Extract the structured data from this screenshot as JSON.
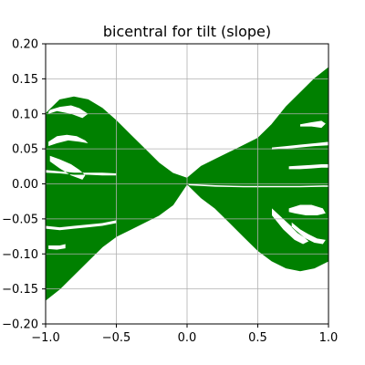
{
  "chart_data": {
    "type": "area",
    "title": "bicentral for tilt (slope)",
    "xlabel": "",
    "ylabel": "",
    "xlim": [
      -1.0,
      1.0
    ],
    "ylim": [
      -0.2,
      0.2
    ],
    "xticks": [
      -1.0,
      -0.5,
      0.0,
      0.5,
      1.0
    ],
    "xtick_labels": [
      "−1.0",
      "−0.5",
      "0.0",
      "0.5",
      "1.0"
    ],
    "yticks": [
      -0.2,
      -0.15,
      -0.1,
      -0.05,
      0.0,
      0.05,
      0.1,
      0.15,
      0.2
    ],
    "ytick_labels": [
      "−0.20",
      "−0.15",
      "−0.10",
      "−0.05",
      "0.00",
      "0.05",
      "0.10",
      "0.15",
      "0.20"
    ],
    "grid": true,
    "fill_color": "#008000",
    "series": [
      {
        "role": "upper-envelope",
        "x": [
          -1.0,
          -0.9,
          -0.8,
          -0.7,
          -0.6,
          -0.5,
          -0.4,
          -0.3,
          -0.2,
          -0.1,
          0.0,
          0.1,
          0.2,
          0.3,
          0.4,
          0.5,
          0.6,
          0.7,
          0.8,
          0.9,
          1.0
        ],
        "y": [
          0.1,
          0.12,
          0.124,
          0.12,
          0.108,
          0.09,
          0.07,
          0.05,
          0.03,
          0.015,
          0.008,
          0.025,
          0.035,
          0.045,
          0.055,
          0.065,
          0.085,
          0.11,
          0.13,
          0.15,
          0.166
        ]
      },
      {
        "role": "lower-envelope",
        "x": [
          -1.0,
          -0.9,
          -0.8,
          -0.7,
          -0.6,
          -0.5,
          -0.4,
          -0.3,
          -0.2,
          -0.1,
          0.0,
          0.1,
          0.2,
          0.3,
          0.4,
          0.5,
          0.6,
          0.7,
          0.8,
          0.9,
          1.0
        ],
        "y": [
          -0.166,
          -0.15,
          -0.13,
          -0.11,
          -0.09,
          -0.075,
          -0.065,
          -0.055,
          -0.045,
          -0.03,
          0.0,
          -0.02,
          -0.035,
          -0.055,
          -0.075,
          -0.095,
          -0.11,
          -0.12,
          -0.124,
          -0.12,
          -0.11
        ]
      }
    ],
    "holes": [
      {
        "x": [
          -0.98,
          -0.92,
          -0.85,
          -0.78,
          -0.72,
          -0.7,
          -0.76,
          -0.84,
          -0.92,
          -0.98
        ],
        "y": [
          0.06,
          0.068,
          0.07,
          0.068,
          0.062,
          0.058,
          0.06,
          0.062,
          0.058,
          0.054
        ]
      },
      {
        "x": [
          -0.97,
          -0.9,
          -0.82,
          -0.76,
          -0.72,
          -0.74,
          -0.82,
          -0.9,
          -0.97
        ],
        "y": [
          0.04,
          0.035,
          0.028,
          0.02,
          0.012,
          0.006,
          0.012,
          0.022,
          0.032
        ]
      },
      {
        "x": [
          -1.0,
          -0.9,
          -0.8,
          -0.7,
          -0.6,
          -0.5,
          -0.5,
          -0.6,
          -0.7,
          -0.8,
          -0.9,
          -1.0
        ],
        "y": [
          0.02,
          0.018,
          0.016,
          0.016,
          0.016,
          0.015,
          0.012,
          0.012,
          0.013,
          0.013,
          0.015,
          0.016
        ]
      },
      {
        "x": [
          -0.98,
          -0.9,
          -0.82,
          -0.76,
          -0.7,
          -0.74,
          -0.82,
          -0.92,
          -0.98
        ],
        "y": [
          0.105,
          0.11,
          0.112,
          0.108,
          0.1,
          0.094,
          0.1,
          0.104,
          0.1
        ]
      },
      {
        "x": [
          -1.0,
          -0.9,
          -0.8,
          -0.7,
          -0.6,
          -0.5,
          -0.5,
          -0.6,
          -0.7,
          -0.8,
          -0.9,
          -1.0
        ],
        "y": [
          -0.06,
          -0.062,
          -0.06,
          -0.058,
          -0.056,
          -0.052,
          -0.056,
          -0.06,
          -0.062,
          -0.064,
          -0.066,
          -0.064
        ]
      },
      {
        "x": [
          -0.98,
          -0.9,
          -0.86,
          -0.86,
          -0.92,
          -0.98
        ],
        "y": [
          -0.088,
          -0.088,
          -0.086,
          -0.092,
          -0.094,
          -0.093
        ]
      },
      {
        "x": [
          0.6,
          0.7,
          0.8,
          0.9,
          1.0,
          1.0,
          0.9,
          0.8,
          0.7,
          0.6
        ],
        "y": [
          0.052,
          0.054,
          0.056,
          0.058,
          0.06,
          0.055,
          0.054,
          0.052,
          0.05,
          0.049
        ]
      },
      {
        "x": [
          0.72,
          0.8,
          0.88,
          0.95,
          1.0,
          1.0,
          0.95,
          0.88,
          0.8,
          0.72
        ],
        "y": [
          0.025,
          0.026,
          0.027,
          0.028,
          0.028,
          0.023,
          0.023,
          0.022,
          0.021,
          0.021
        ]
      },
      {
        "x": [
          0.8,
          0.88,
          0.95,
          0.98,
          0.95,
          0.88,
          0.8
        ],
        "y": [
          0.085,
          0.088,
          0.09,
          0.086,
          0.08,
          0.082,
          0.082
        ]
      },
      {
        "x": [
          0.72,
          0.8,
          0.88,
          0.96,
          0.98,
          0.92,
          0.84,
          0.76,
          0.72
        ],
        "y": [
          -0.035,
          -0.03,
          -0.03,
          -0.035,
          -0.042,
          -0.045,
          -0.045,
          -0.042,
          -0.04
        ]
      },
      {
        "x": [
          0.6,
          0.68,
          0.76,
          0.82,
          0.86,
          0.82,
          0.76,
          0.68,
          0.6
        ],
        "y": [
          -0.035,
          -0.05,
          -0.065,
          -0.075,
          -0.082,
          -0.086,
          -0.08,
          -0.065,
          -0.045
        ]
      },
      {
        "x": [
          0.74,
          0.8,
          0.86,
          0.92,
          0.98,
          0.96,
          0.9,
          0.84,
          0.78,
          0.74
        ],
        "y": [
          -0.055,
          -0.065,
          -0.072,
          -0.078,
          -0.08,
          -0.086,
          -0.084,
          -0.078,
          -0.07,
          -0.062
        ]
      },
      {
        "x": [
          0.0,
          0.2,
          0.4,
          0.6,
          0.8,
          1.0,
          1.0,
          0.8,
          0.6,
          0.4,
          0.2,
          0.0
        ],
        "y": [
          0.0,
          -0.002,
          -0.003,
          -0.003,
          -0.003,
          -0.002,
          -0.004,
          -0.005,
          -0.005,
          -0.005,
          -0.004,
          -0.002
        ]
      }
    ]
  }
}
